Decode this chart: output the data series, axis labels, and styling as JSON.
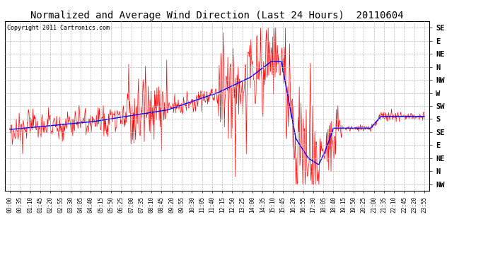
{
  "title": "Normalized and Average Wind Direction (Last 24 Hours)  20110604",
  "copyright": "Copyright 2011 Cartronics.com",
  "background_color": "#ffffff",
  "plot_background": "#ffffff",
  "grid_color": "#bbbbbb",
  "y_labels": [
    "SE",
    "E",
    "NE",
    "N",
    "NW",
    "W",
    "SW",
    "S",
    "SE",
    "E",
    "NE",
    "N",
    "NW"
  ],
  "y_values": [
    1,
    2,
    3,
    4,
    5,
    6,
    7,
    8,
    9,
    10,
    11,
    12,
    13
  ],
  "x_tick_labels": [
    "00:00",
    "00:35",
    "01:10",
    "01:45",
    "02:20",
    "02:55",
    "03:30",
    "04:05",
    "04:40",
    "05:15",
    "05:50",
    "06:25",
    "07:00",
    "07:35",
    "08:10",
    "08:45",
    "09:20",
    "09:55",
    "10:30",
    "11:05",
    "11:40",
    "12:15",
    "12:50",
    "13:25",
    "14:00",
    "14:35",
    "15:10",
    "15:45",
    "16:20",
    "16:55",
    "17:30",
    "18:05",
    "18:40",
    "19:15",
    "19:50",
    "20:25",
    "21:00",
    "21:35",
    "22:10",
    "22:45",
    "23:20",
    "23:55"
  ],
  "red_line_color": "#ff0000",
  "blue_line_color": "#0000ff",
  "title_fontsize": 10,
  "copyright_fontsize": 6,
  "tick_fontsize": 5.5,
  "ylabel_fontsize": 7.5
}
